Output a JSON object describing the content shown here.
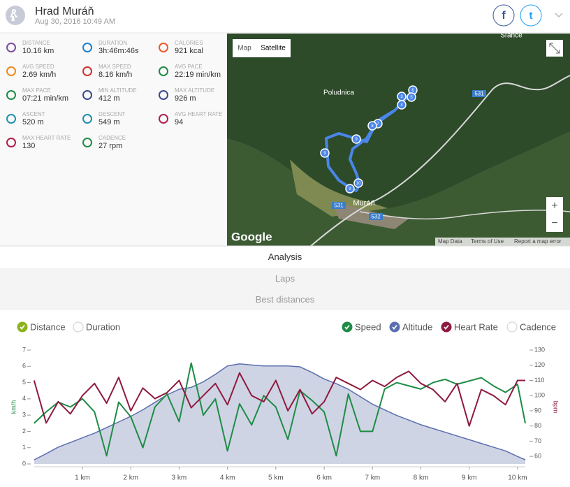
{
  "header": {
    "title": "Hrad Muráň",
    "date": "Aug 30, 2016 10:49 AM",
    "social": [
      "f",
      "t"
    ]
  },
  "stats": [
    {
      "label": "DISTANCE",
      "value": "10.16 km"
    },
    {
      "label": "DURATION",
      "value": "3h:46m:46s"
    },
    {
      "label": "CALORIES",
      "value": "921 kcal"
    },
    {
      "label": "AVG SPEED",
      "value": "2.69 km/h"
    },
    {
      "label": "MAX SPEED",
      "value": "8.16 km/h"
    },
    {
      "label": "AVG PACE",
      "value": "22:19 min/km"
    },
    {
      "label": "MAX PACE",
      "value": "07:21 min/km"
    },
    {
      "label": "MIN ALTITUDE",
      "value": "412 m"
    },
    {
      "label": "MAX ALTITUDE",
      "value": "926 m"
    },
    {
      "label": "ASCENT",
      "value": "520 m"
    },
    {
      "label": "DESCENT",
      "value": "549 m"
    },
    {
      "label": "AVG HEART RATE",
      "value": "94"
    },
    {
      "label": "MAX HEART RATE",
      "value": "130"
    },
    {
      "label": "CADENCE",
      "value": "27 rpm"
    }
  ],
  "map": {
    "buttons": [
      "Map",
      "Satellite"
    ],
    "places": [
      "Sľance",
      "Poludnica",
      "Muráň"
    ],
    "roads": [
      "531",
      "531",
      "532"
    ],
    "markers": [
      "6",
      "5",
      "3",
      "4",
      "7",
      "8",
      "9",
      "9",
      "10",
      "9"
    ],
    "logo": "Google",
    "zoom": [
      "+",
      "−"
    ],
    "footer": [
      "Map Data",
      "Terms of Use",
      "Report a map error"
    ]
  },
  "tabs": [
    "Analysis",
    "Laps",
    "Best distances"
  ],
  "chart_data": {
    "type": "line",
    "x_modes": [
      {
        "name": "Distance",
        "checked": true
      },
      {
        "name": "Duration",
        "checked": false
      }
    ],
    "extra_toggles": [
      {
        "name": "Cadence",
        "checked": false
      }
    ],
    "x": [
      0,
      0.25,
      0.5,
      0.75,
      1,
      1.25,
      1.5,
      1.75,
      2,
      2.25,
      2.5,
      2.75,
      3,
      3.25,
      3.5,
      3.75,
      4,
      4.25,
      4.5,
      4.75,
      5,
      5.25,
      5.5,
      5.75,
      6,
      6.25,
      6.5,
      6.75,
      7,
      7.25,
      7.5,
      7.75,
      8,
      8.25,
      8.5,
      8.75,
      9,
      9.25,
      9.5,
      9.75,
      10,
      10.16
    ],
    "xlim": [
      0,
      10.16
    ],
    "xticks": [
      {
        "value": 1,
        "label": "1 km"
      },
      {
        "value": 2,
        "label": "2 km"
      },
      {
        "value": 3,
        "label": "3 km"
      },
      {
        "value": 4,
        "label": "4 km"
      },
      {
        "value": 5,
        "label": "5 km"
      },
      {
        "value": 6,
        "label": "6 km"
      },
      {
        "value": 7,
        "label": "7 km"
      },
      {
        "value": 8,
        "label": "8 km"
      },
      {
        "value": 9,
        "label": "9 km"
      },
      {
        "value": 10,
        "label": "10 km"
      }
    ],
    "ylabel": "km/h",
    "ylim": [
      0,
      7
    ],
    "yticks": [
      0,
      1,
      2,
      3,
      4,
      5,
      6,
      7
    ],
    "y2label": "bpm",
    "y2lim": [
      55,
      130
    ],
    "y2ticks": [
      60,
      70,
      80,
      90,
      100,
      110,
      120,
      130
    ],
    "y3lim": [
      390,
      1000
    ],
    "series": [
      {
        "name": "Speed",
        "color": "#1e8c45",
        "checked": true,
        "values": [
          2.5,
          3.2,
          3.8,
          3.5,
          4,
          3.2,
          0.5,
          3.8,
          2.9,
          1,
          3.5,
          4.3,
          2.6,
          6.2,
          3,
          4,
          0.8,
          3.7,
          2.4,
          4.2,
          3.5,
          1.5,
          4.5,
          3.9,
          3.2,
          0.5,
          4.3,
          2,
          2,
          4.6,
          5,
          4.8,
          4.6,
          5,
          5.2,
          4.9,
          5.1,
          5.3,
          4.8,
          4.4,
          4.9,
          2.5
        ]
      },
      {
        "name": "Altitude",
        "color": "#5b6fb0",
        "checked": true,
        "axis": "y3",
        "values": [
          412,
          445,
          480,
          505,
          530,
          555,
          585,
          615,
          645,
          680,
          720,
          760,
          790,
          800,
          830,
          870,
          915,
          926,
          920,
          915,
          915,
          915,
          910,
          880,
          845,
          820,
          790,
          750,
          710,
          680,
          650,
          625,
          600,
          580,
          560,
          540,
          520,
          500,
          480,
          460,
          430,
          412
        ]
      },
      {
        "name": "Heart Rate",
        "color": "#8e1a3f",
        "checked": true,
        "axis": "y2",
        "values": [
          110,
          82,
          96,
          88,
          100,
          108,
          95,
          112,
          90,
          105,
          98,
          102,
          110,
          92,
          100,
          108,
          94,
          115,
          100,
          96,
          110,
          90,
          104,
          88,
          96,
          112,
          108,
          104,
          110,
          106,
          112,
          116,
          108,
          104,
          96,
          108,
          80,
          104,
          100,
          94,
          110,
          110
        ]
      }
    ]
  }
}
